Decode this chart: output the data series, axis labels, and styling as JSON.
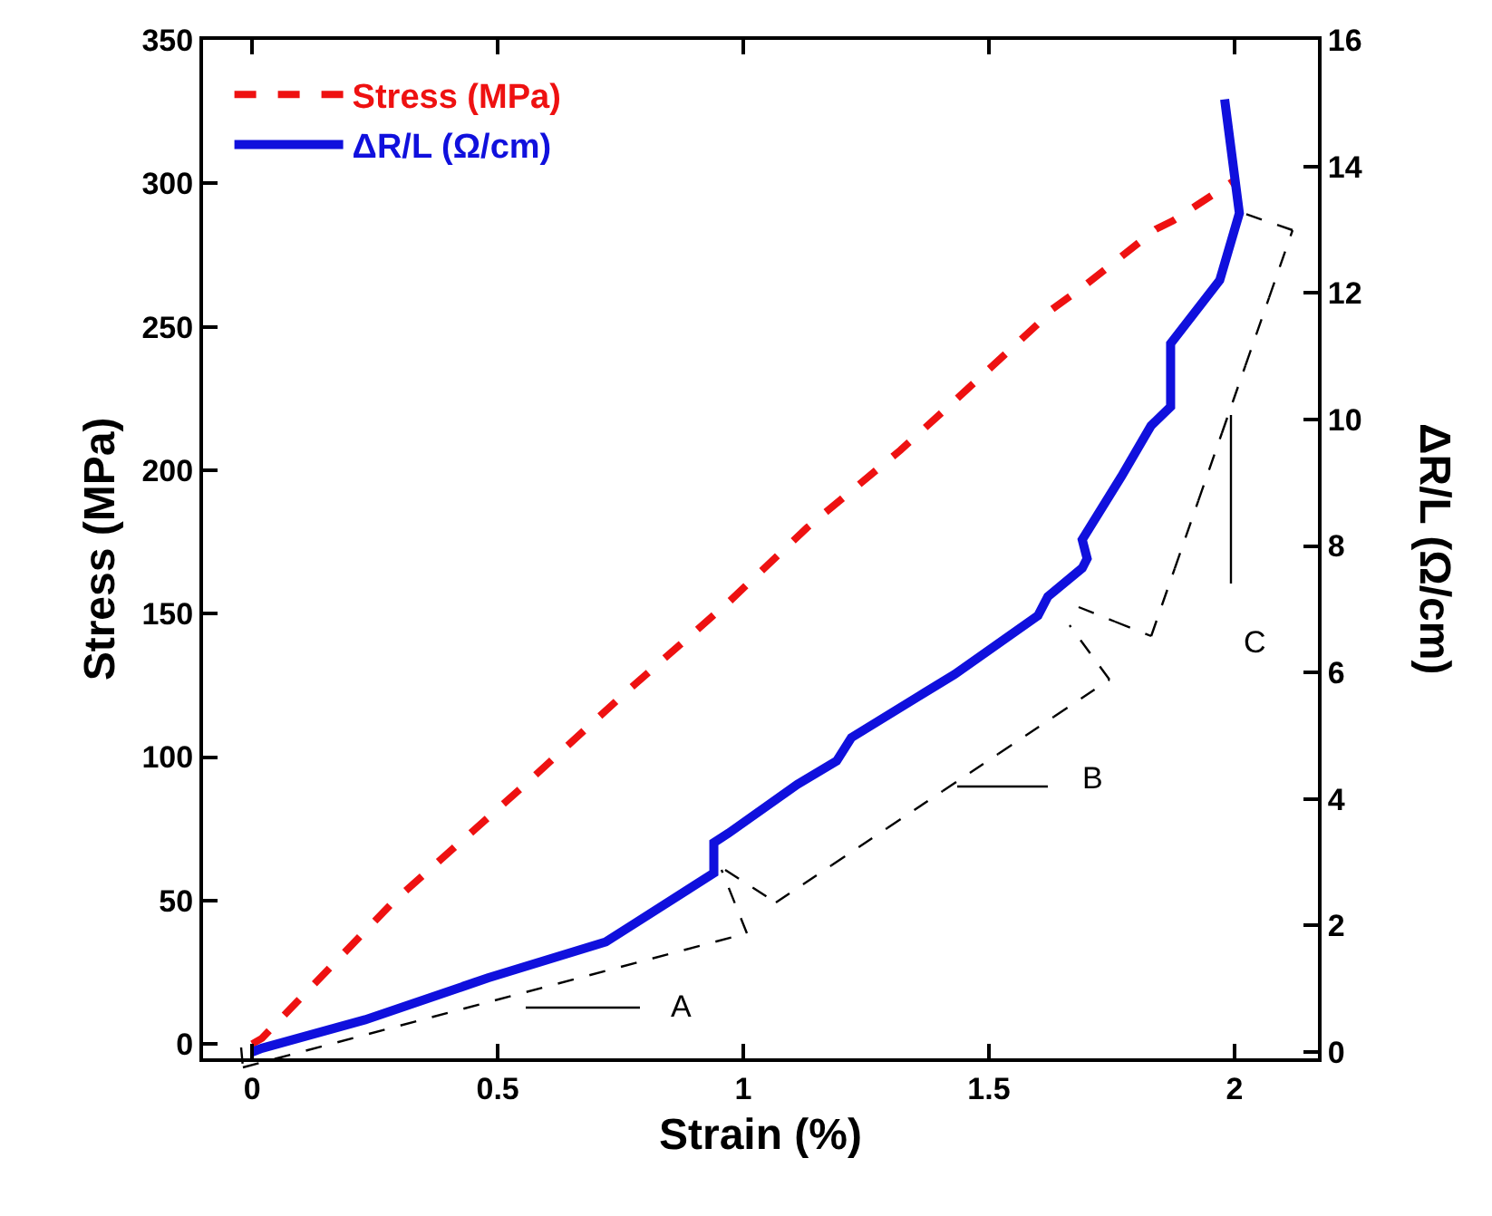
{
  "chart_data": {
    "type": "line",
    "xlabel": "Strain (%)",
    "ylabel": "Stress (MPa)",
    "y2label": "ΔR/L (Ω/cm)",
    "xlim": [
      -0.1,
      2.17
    ],
    "xticks": [
      0,
      0.5,
      1,
      1.5,
      2
    ],
    "ylim": [
      -5,
      350
    ],
    "yticks": [
      0,
      50,
      100,
      150,
      200,
      250,
      300,
      350
    ],
    "y2lim": [
      -0.1,
      16
    ],
    "y2ticks": [
      0,
      2,
      4,
      6,
      8,
      10,
      12,
      14,
      16
    ],
    "legend": "top left",
    "series": [
      {
        "name": "Stress (MPa)",
        "color": "#ee1111",
        "line_style": "dashed",
        "x": [
          0.0,
          0.02,
          0.29,
          0.54,
          0.77,
          0.97,
          1.13,
          1.32,
          1.41,
          1.6,
          1.62,
          1.7,
          1.84,
          1.875,
          1.92,
          2.0
        ],
        "values": [
          0,
          2,
          50,
          88,
          124,
          154,
          180,
          207,
          221,
          251,
          255,
          265,
          284,
          287,
          292,
          301
        ]
      },
      {
        "name": "ΔR/L (Ω/cm)",
        "color": "#1010dd",
        "line_style": "solid",
        "axis": "y2",
        "x": [
          0.0,
          0.02,
          0.23,
          0.48,
          0.72,
          0.94,
          0.94,
          0.97,
          1.11,
          1.19,
          1.22,
          1.43,
          1.6,
          1.62,
          1.69,
          1.7,
          1.69,
          1.77,
          1.83,
          1.87,
          1.87,
          1.97,
          2.01,
          1.98
        ],
        "values": [
          0,
          0.06,
          0.51,
          1.17,
          1.74,
          2.83,
          3.31,
          3.46,
          4.23,
          4.6,
          4.97,
          5.97,
          6.9,
          7.2,
          7.65,
          7.8,
          8.1,
          9.1,
          9.9,
          10.2,
          11.2,
          12.2,
          13.26,
          15.06
        ]
      }
    ],
    "annotations": [
      "A",
      "B",
      "C"
    ]
  }
}
